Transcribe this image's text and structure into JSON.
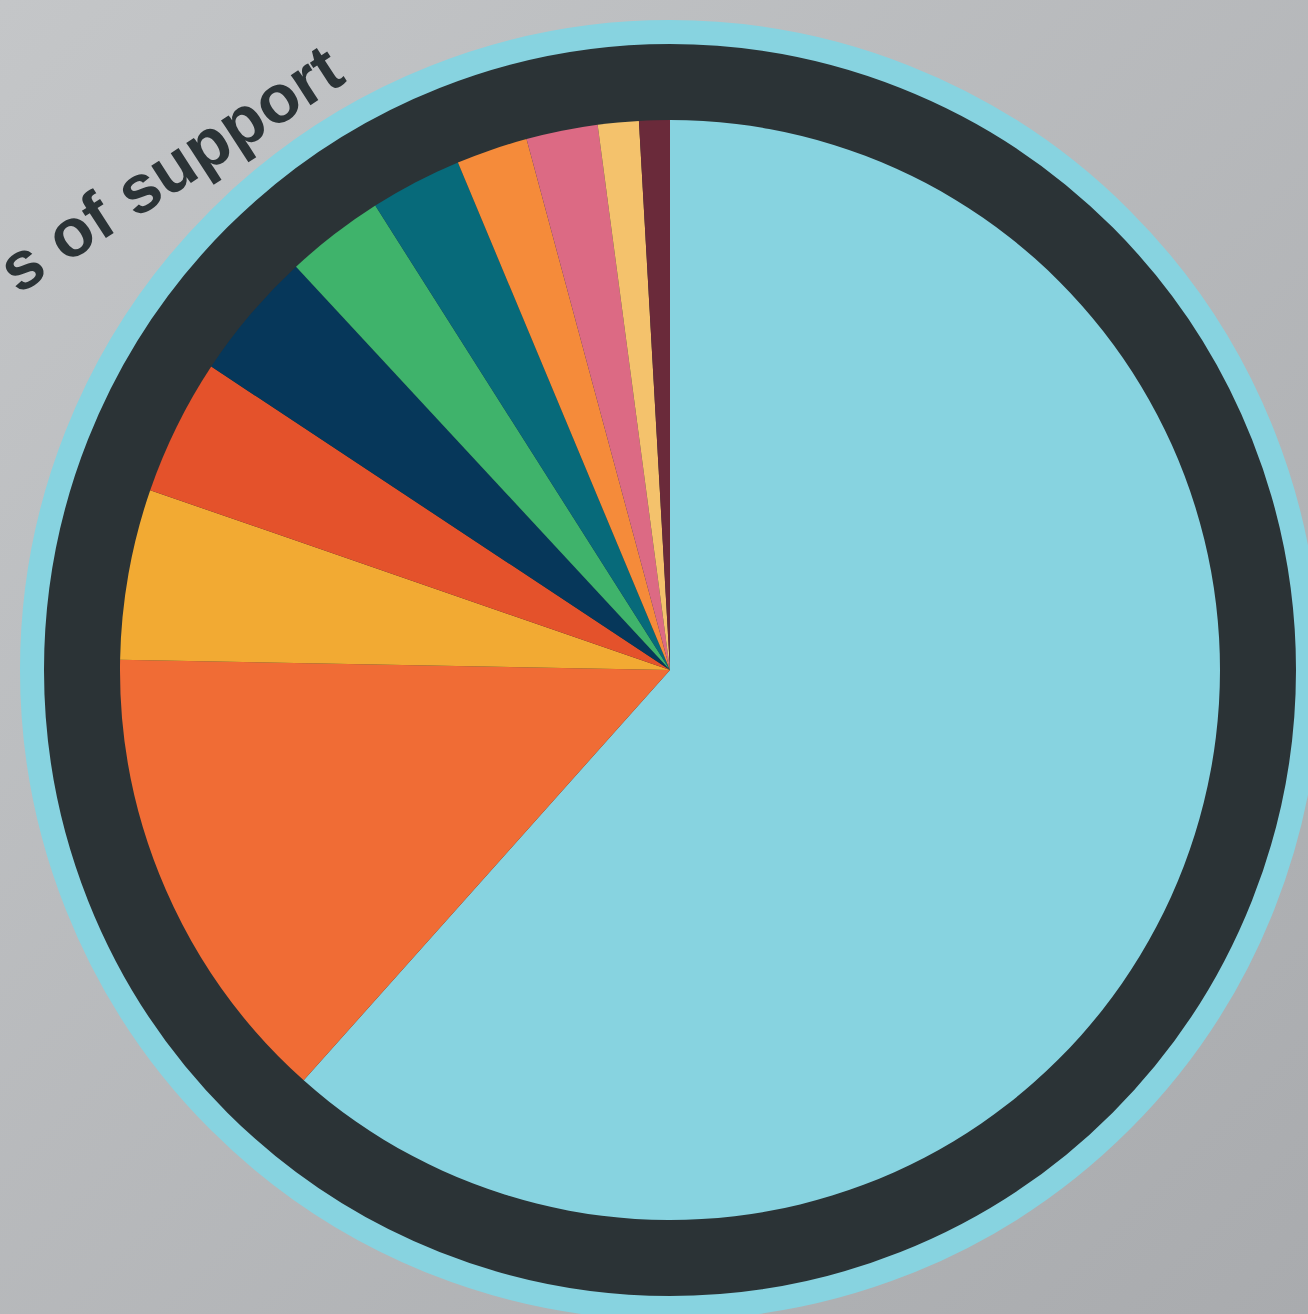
{
  "chart_data": {
    "type": "pie",
    "annotations": [
      "s of support"
    ],
    "categories": [
      null,
      null,
      null,
      null,
      null,
      null,
      null,
      null,
      null,
      null,
      null
    ],
    "values": [
      61.6,
      13.7,
      5,
      4,
      3.8,
      2.9,
      2.7,
      2.1,
      2.1,
      1.2,
      0.9
    ],
    "colors": [
      "#87d3e0",
      "#f06c35",
      "#f2aa33",
      "#e4522b",
      "#06375a",
      "#3fb36b",
      "#076a7a",
      "#f58b3a",
      "#dc6a84",
      "#f4c26c",
      "#6a2a3a"
    ],
    "legend": false
  }
}
